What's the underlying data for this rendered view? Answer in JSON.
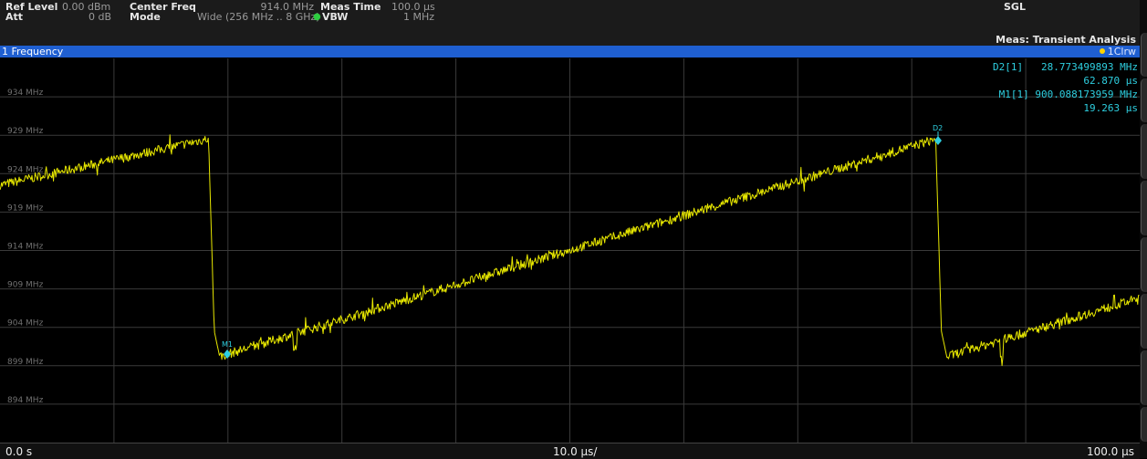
{
  "header": {
    "ref_level_label": "Ref Level",
    "ref_level_value": "0.00 dBm",
    "att_label": "Att",
    "att_value": "0 dB",
    "center_freq_label": "Center Freq",
    "center_freq_value": "914.0 MHz",
    "mode_label": "Mode",
    "mode_value": "Wide (256 MHz .. 8 GHz)",
    "meas_time_label": "Meas Time",
    "meas_time_value": "100.0 µs",
    "vbw_label": "VBW",
    "vbw_value": "1 MHz",
    "sgl": "SGL",
    "meas_label": "Meas: Transient Analysis"
  },
  "window": {
    "title": "1 Frequency",
    "trace_label": "1Clrw"
  },
  "markers": {
    "d2_name": "D2[1]",
    "d2_freq": "28.773499893 MHz",
    "d2_time": "62.870 µs",
    "m1_name": "M1[1]",
    "m1_freq": "900.088173959 MHz",
    "m1_time": "19.263 µs",
    "m1_tag": "M1",
    "d2_tag": "D2"
  },
  "axis": {
    "y_labels": [
      "934 MHz",
      "929 MHz",
      "924 MHz",
      "919 MHz",
      "914 MHz",
      "909 MHz",
      "904 MHz",
      "899 MHz",
      "894 MHz"
    ],
    "x_start": "0.0 s",
    "x_div": "10.0 µs/",
    "x_end": "100.0 µs"
  },
  "colors": {
    "trace": "#e8e800",
    "marker": "#2ecfe0",
    "title_bar": "#1f5fd1"
  }
}
